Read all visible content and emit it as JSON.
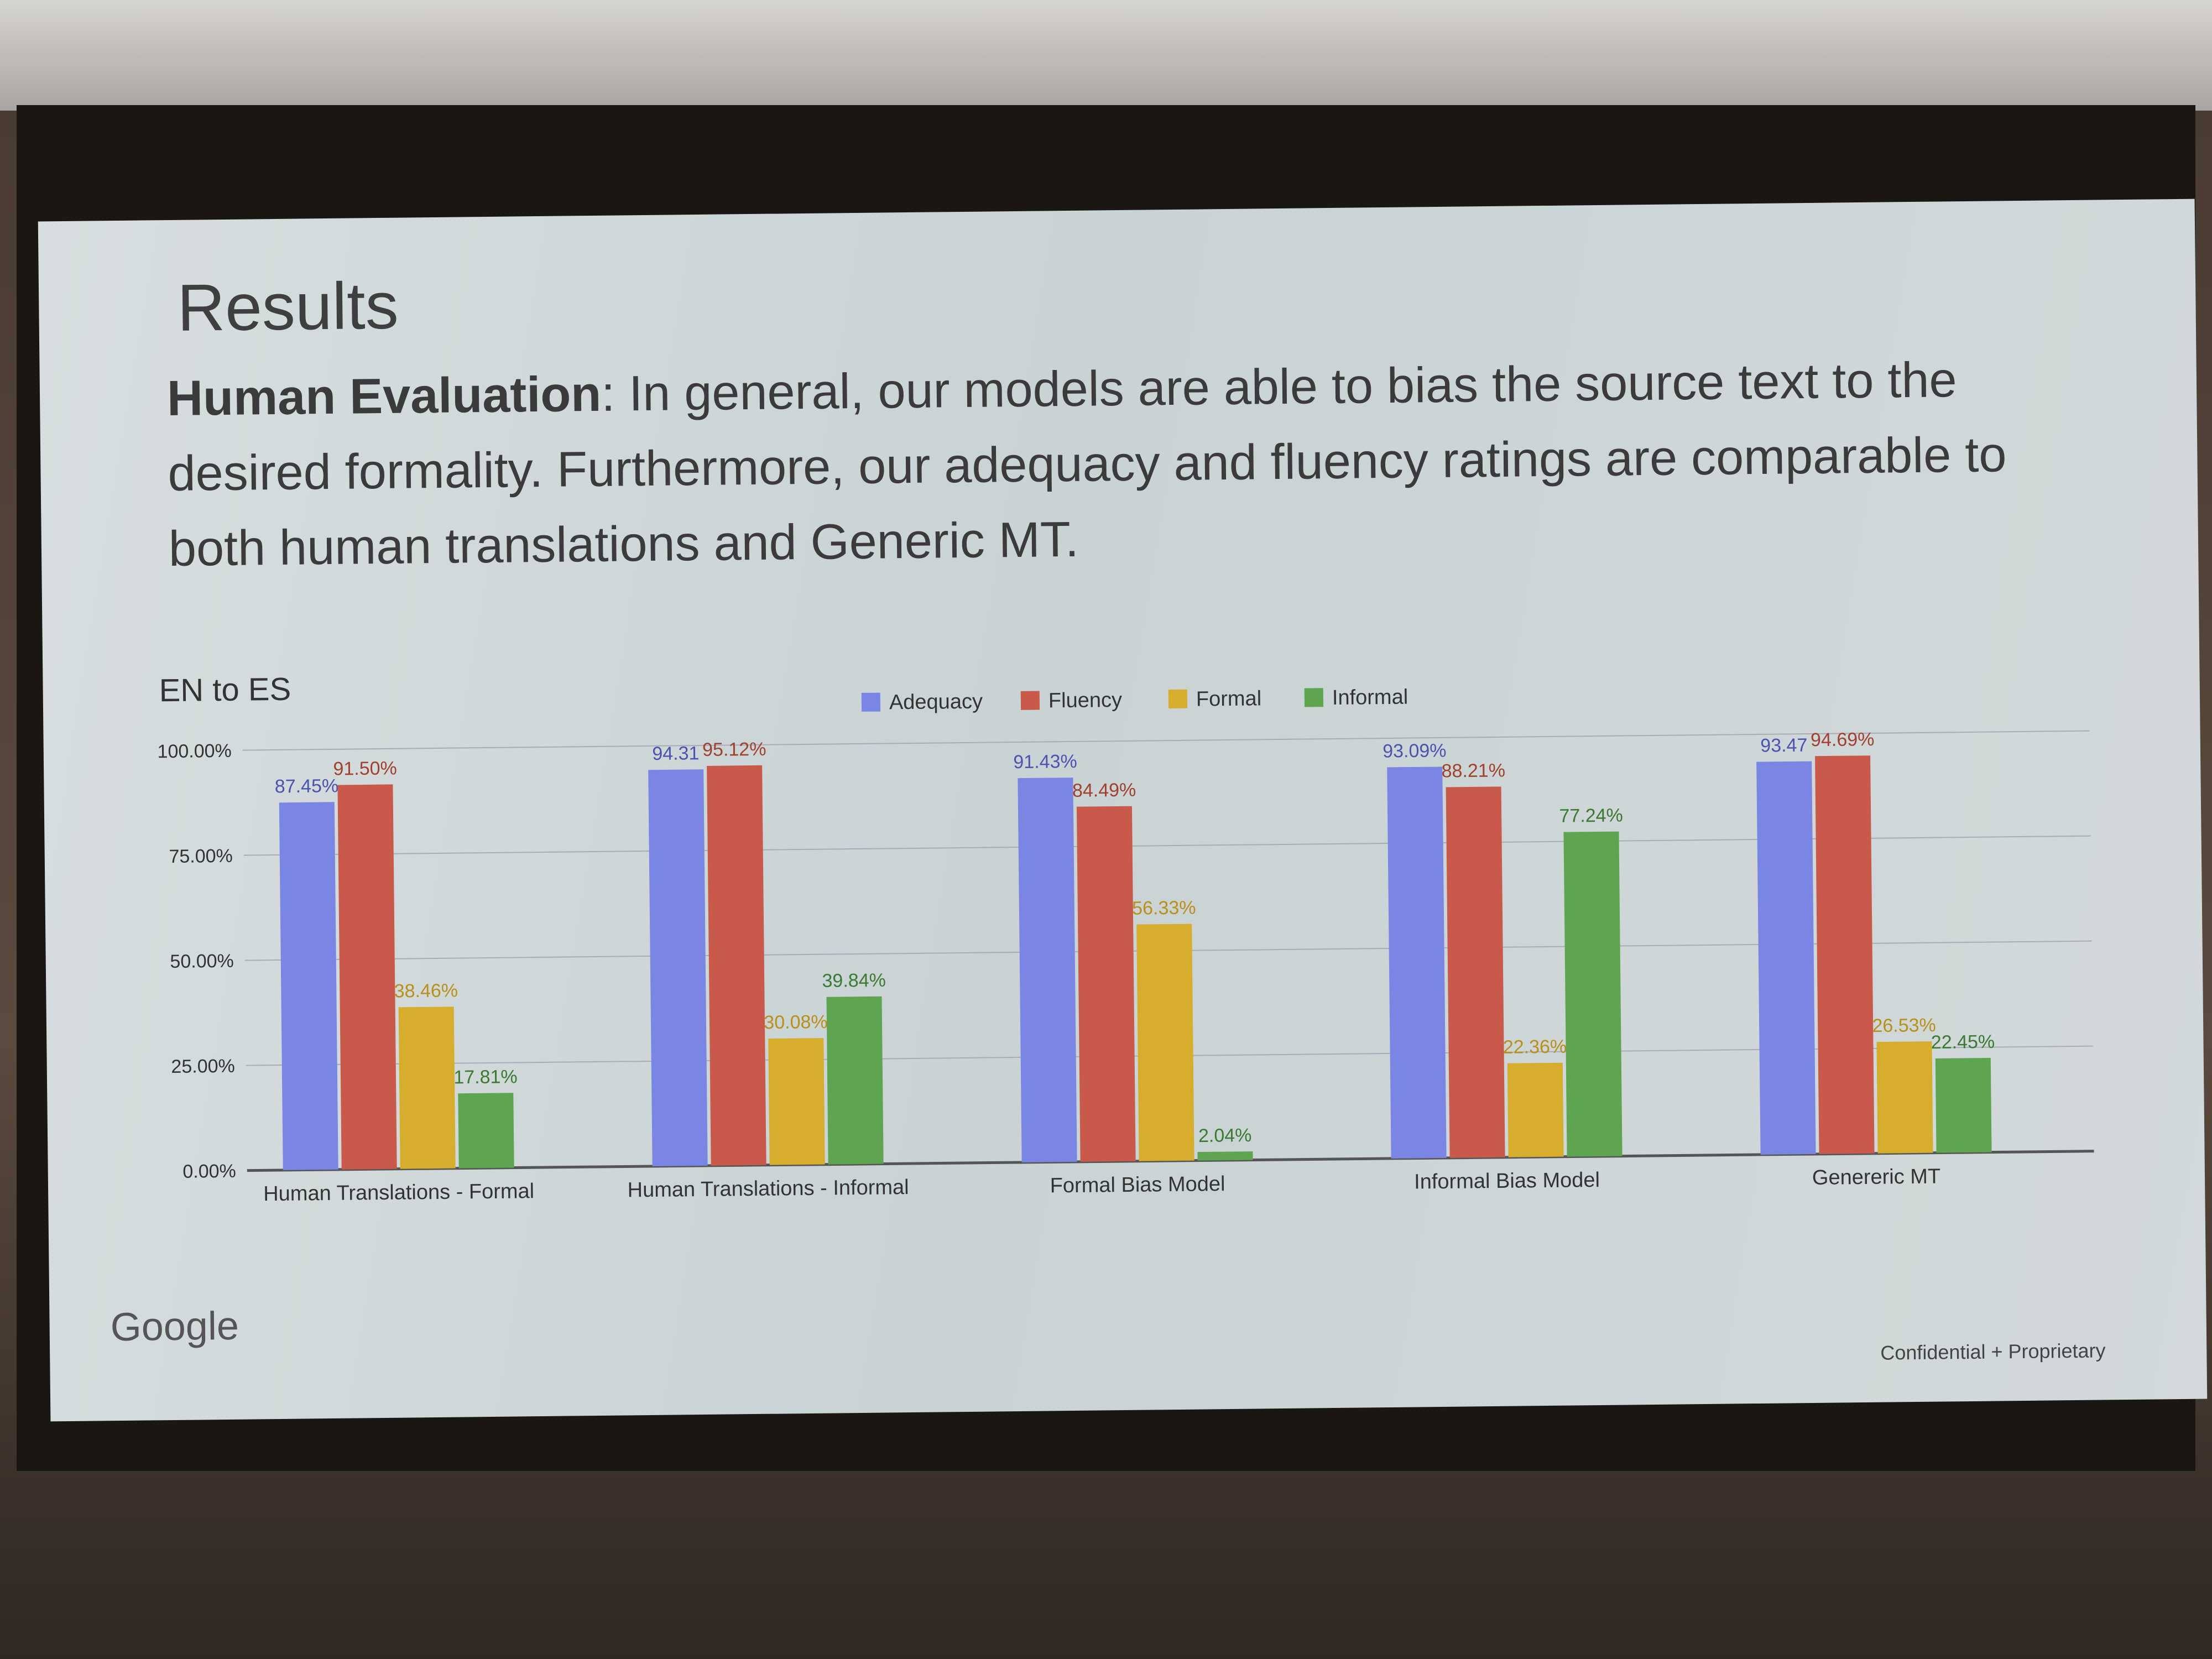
{
  "slide": {
    "title": "Results",
    "subtitle_bold": "Human Evaluation",
    "subtitle_rest": ": In general, our models are able to bias the source text to the desired formality. Furthermore, our adequacy and fluency ratings are comparable to both human translations and Generic MT.",
    "brand": "Google",
    "footer": "Confidential + Proprietary"
  },
  "chart_data": {
    "type": "bar",
    "title": "EN to ES",
    "categories": [
      "Human Translations - Formal",
      "Human Translations - Informal",
      "Formal Bias Model",
      "Informal Bias Model",
      "Genereric MT"
    ],
    "series": [
      {
        "name": "Adequacy",
        "values": [
          87.45,
          94.31,
          91.43,
          93.09,
          93.47
        ],
        "labels": [
          "87.45%",
          "94.31",
          "91.43%",
          "93.09%",
          "93.47"
        ],
        "color": "#7b86e4"
      },
      {
        "name": "Fluency",
        "values": [
          91.5,
          95.12,
          84.49,
          88.21,
          94.69
        ],
        "labels": [
          "91.50%",
          "95.12%",
          "84.49%",
          "88.21%",
          "94.69%"
        ],
        "color": "#c9594a"
      },
      {
        "name": "Formal",
        "values": [
          38.46,
          30.08,
          56.33,
          22.36,
          26.53
        ],
        "labels": [
          "38.46%",
          "30.08%",
          "56.33%",
          "22.36%",
          "26.53%"
        ],
        "color": "#d6ad2c"
      },
      {
        "name": "Informal",
        "values": [
          17.81,
          39.84,
          2.04,
          77.24,
          22.45
        ],
        "labels": [
          "17.81%",
          "39.84%",
          "2.04%",
          "77.24%",
          "22.45%"
        ],
        "color": "#5fa450"
      }
    ],
    "yticks": [
      "0.00%",
      "25.00%",
      "50.00%",
      "75.00%",
      "100.00%"
    ],
    "ylim": [
      0,
      100
    ],
    "grid": true,
    "legend": "top-center"
  }
}
